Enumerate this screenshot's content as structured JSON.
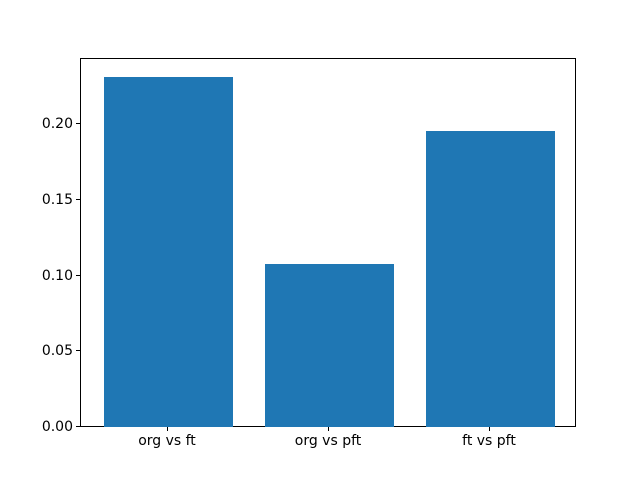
{
  "figure": {
    "background": "#ffffff"
  },
  "chart_data": {
    "type": "bar",
    "title": "",
    "xlabel": "",
    "ylabel": "",
    "categories": [
      "org vs ft",
      "org vs pft",
      "ft vs pft"
    ],
    "values": [
      0.232,
      0.108,
      0.196
    ],
    "bar_color": "#1f77b4",
    "bar_width": 0.8,
    "xlim": [
      -0.54,
      2.54
    ],
    "ylim": [
      0,
      0.2436
    ],
    "yticks": [
      0.0,
      0.05,
      0.1,
      0.15,
      0.2
    ],
    "ytick_labels": [
      "0.00",
      "0.05",
      "0.10",
      "0.15",
      "0.20"
    ],
    "grid": false,
    "legend": null,
    "spine_color": "#000000",
    "tick_color": "#000000",
    "text_color": "#000000"
  }
}
